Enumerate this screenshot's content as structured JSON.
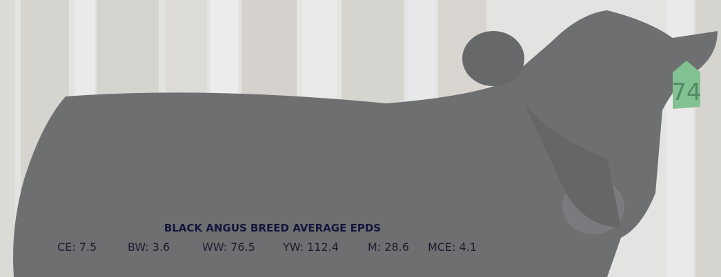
{
  "title": "BLACK ANGUS BREED AVERAGE EPDS",
  "epds": [
    "CE: 7.5",
    "BW: 3.6",
    "WW: 76.5",
    "YW: 112.4",
    "M: 28.6",
    "MCE: 4.1"
  ],
  "ear_tag": "74"
}
